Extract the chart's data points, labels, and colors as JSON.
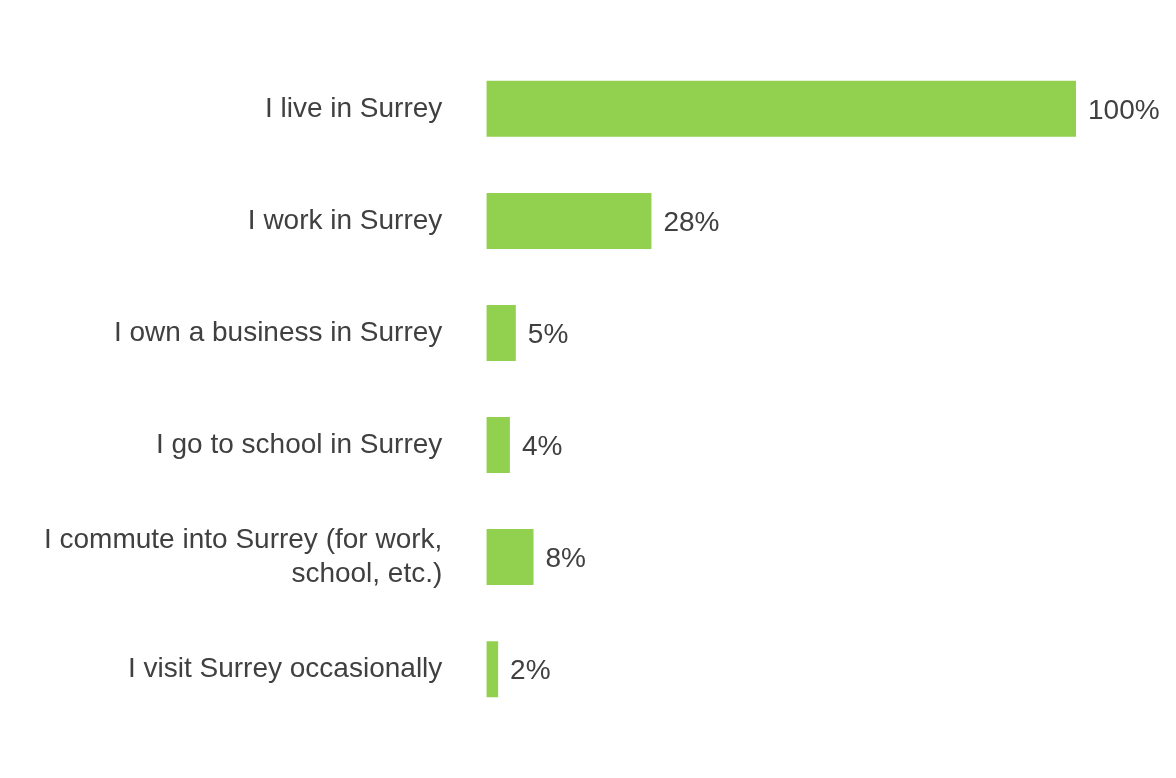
{
  "chart_data": {
    "type": "bar",
    "orientation": "horizontal",
    "categories": [
      "I live in Surrey",
      "I work in Surrey",
      "I own a business in Surrey",
      "I go to school in Surrey",
      "I commute into Surrey (for work, school, etc.)",
      "I visit Surrey occasionally"
    ],
    "values": [
      100,
      28,
      5,
      4,
      8,
      2
    ],
    "value_labels": [
      "100%",
      "28%",
      "5%",
      "4%",
      "8%",
      "2%"
    ],
    "color": "#92d050",
    "xlim": [
      0,
      100
    ],
    "grid": false,
    "legend": false
  }
}
